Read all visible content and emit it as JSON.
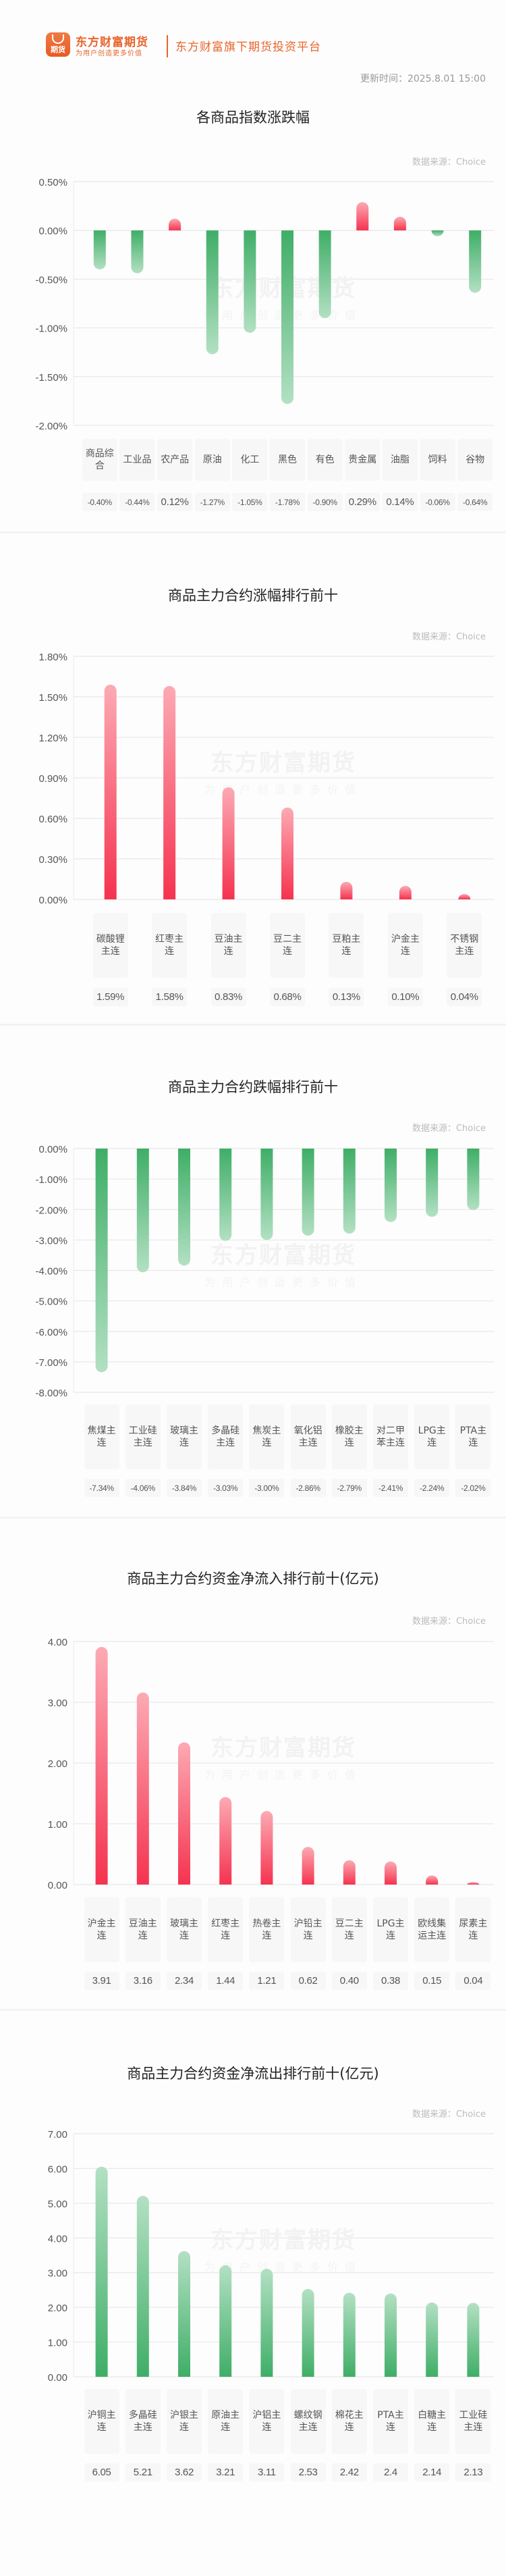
{
  "header": {
    "logo_badge_text": "期货",
    "brand_name": "东方财富期货",
    "brand_slogan": "为用户创造更多价值",
    "brand_tagline": "东方财富旗下期货投资平台",
    "update_time": "更新时间：2025.8.01 15:00"
  },
  "watermark": {
    "line1": "东方财富期货",
    "line2": "为用户创造更多价值"
  },
  "colors": {
    "brand": "#e8642c",
    "up": "#f5334f",
    "up_light": "#fcaab4",
    "down": "#3fae67",
    "down_light": "#b3e0c3",
    "grid": "#e4e4e4"
  },
  "chart_data": [
    {
      "type": "bar",
      "title": "各商品指数涨跌幅",
      "source": "数据来源：Choice",
      "categories": [
        "商品综合",
        "工业品",
        "农产品",
        "原油",
        "化工",
        "黑色",
        "有色",
        "贵金属",
        "油脂",
        "饲料",
        "谷物"
      ],
      "values": [
        -0.4,
        -0.44,
        0.12,
        -1.27,
        -1.05,
        -1.78,
        -0.9,
        0.29,
        0.14,
        -0.06,
        -0.64
      ],
      "value_labels": [
        "-0.40%",
        "-0.44%",
        "0.12%",
        "-1.27%",
        "-1.05%",
        "-1.78%",
        "-0.90%",
        "0.29%",
        "0.14%",
        "-0.06%",
        "-0.64%"
      ],
      "yticks": [
        "0.50%",
        "0.00%",
        "-0.50%",
        "-1.00%",
        "-1.50%",
        "-2.00%"
      ],
      "ylim": [
        -2.0,
        0.5
      ],
      "ylabel": "",
      "xlabel": "",
      "grid": true,
      "legend": "none"
    },
    {
      "type": "bar",
      "title": "商品主力合约涨幅排行前十",
      "source": "数据来源：Choice",
      "categories": [
        "碳酸锂主连",
        "红枣主连",
        "豆油主连",
        "豆二主连",
        "豆粕主连",
        "沪金主连",
        "不锈钢主连"
      ],
      "values": [
        1.59,
        1.58,
        0.83,
        0.68,
        0.13,
        0.1,
        0.04
      ],
      "value_labels": [
        "1.59%",
        "1.58%",
        "0.83%",
        "0.68%",
        "0.13%",
        "0.10%",
        "0.04%"
      ],
      "yticks": [
        "1.80%",
        "1.50%",
        "1.20%",
        "0.90%",
        "0.60%",
        "0.30%",
        "0.00%"
      ],
      "ylim": [
        0,
        1.8
      ],
      "ylabel": "",
      "xlabel": "",
      "grid": true,
      "legend": "none"
    },
    {
      "type": "bar",
      "title": "商品主力合约跌幅排行前十",
      "source": "数据来源：Choice",
      "categories": [
        "焦煤主连",
        "工业硅主连",
        "玻璃主连",
        "多晶硅主连",
        "焦炭主连",
        "氧化铝主连",
        "橡胶主连",
        "对二甲苯主连",
        "LPG主连",
        "PTA主连"
      ],
      "values": [
        -7.34,
        -4.06,
        -3.84,
        -3.03,
        -3.0,
        -2.86,
        -2.79,
        -2.41,
        -2.24,
        -2.02
      ],
      "value_labels": [
        "-7.34%",
        "-4.06%",
        "-3.84%",
        "-3.03%",
        "-3.00%",
        "-2.86%",
        "-2.79%",
        "-2.41%",
        "-2.24%",
        "-2.02%"
      ],
      "yticks": [
        "0.00%",
        "-1.00%",
        "-2.00%",
        "-3.00%",
        "-4.00%",
        "-5.00%",
        "-6.00%",
        "-7.00%",
        "-8.00%"
      ],
      "ylim": [
        -8.0,
        0
      ],
      "ylabel": "",
      "xlabel": "",
      "grid": true,
      "legend": "none"
    },
    {
      "type": "bar",
      "title": "商品主力合约资金净流入排行前十(亿元)",
      "source": "数据来源：Choice",
      "categories": [
        "沪金主连",
        "豆油主连",
        "玻璃主连",
        "红枣主连",
        "热卷主连",
        "沪铅主连",
        "豆二主连",
        "LPG主连",
        "欧线集运主连",
        "尿素主连"
      ],
      "values": [
        3.91,
        3.16,
        2.34,
        1.44,
        1.21,
        0.62,
        0.4,
        0.38,
        0.15,
        0.04
      ],
      "value_labels": [
        "3.91",
        "3.16",
        "2.34",
        "1.44",
        "1.21",
        "0.62",
        "0.40",
        "0.38",
        "0.15",
        "0.04"
      ],
      "yticks": [
        "4.00",
        "3.00",
        "2.00",
        "1.00",
        "0.00"
      ],
      "ylim": [
        0,
        4.0
      ],
      "ylabel": "",
      "xlabel": "",
      "grid": true,
      "legend": "none"
    },
    {
      "type": "bar",
      "title": "商品主力合约资金净流出排行前十(亿元)",
      "source": "数据来源：Choice",
      "categories": [
        "沪铜主连",
        "多晶硅主连",
        "沪银主连",
        "原油主连",
        "沪铝主连",
        "螺纹钢主连",
        "棉花主连",
        "PTA主连",
        "白糖主连",
        "工业硅主连"
      ],
      "values": [
        6.05,
        5.21,
        3.62,
        3.21,
        3.11,
        2.53,
        2.42,
        2.4,
        2.14,
        2.13
      ],
      "value_labels": [
        "6.05",
        "5.21",
        "3.62",
        "3.21",
        "3.11",
        "2.53",
        "2.42",
        "2.4",
        "2.14",
        "2.13"
      ],
      "yticks": [
        "7.00",
        "6.00",
        "5.00",
        "4.00",
        "3.00",
        "2.00",
        "1.00",
        "0.00"
      ],
      "ylim": [
        0,
        7.0
      ],
      "ylabel": "",
      "xlabel": "",
      "grid": true,
      "legend": "none"
    }
  ]
}
